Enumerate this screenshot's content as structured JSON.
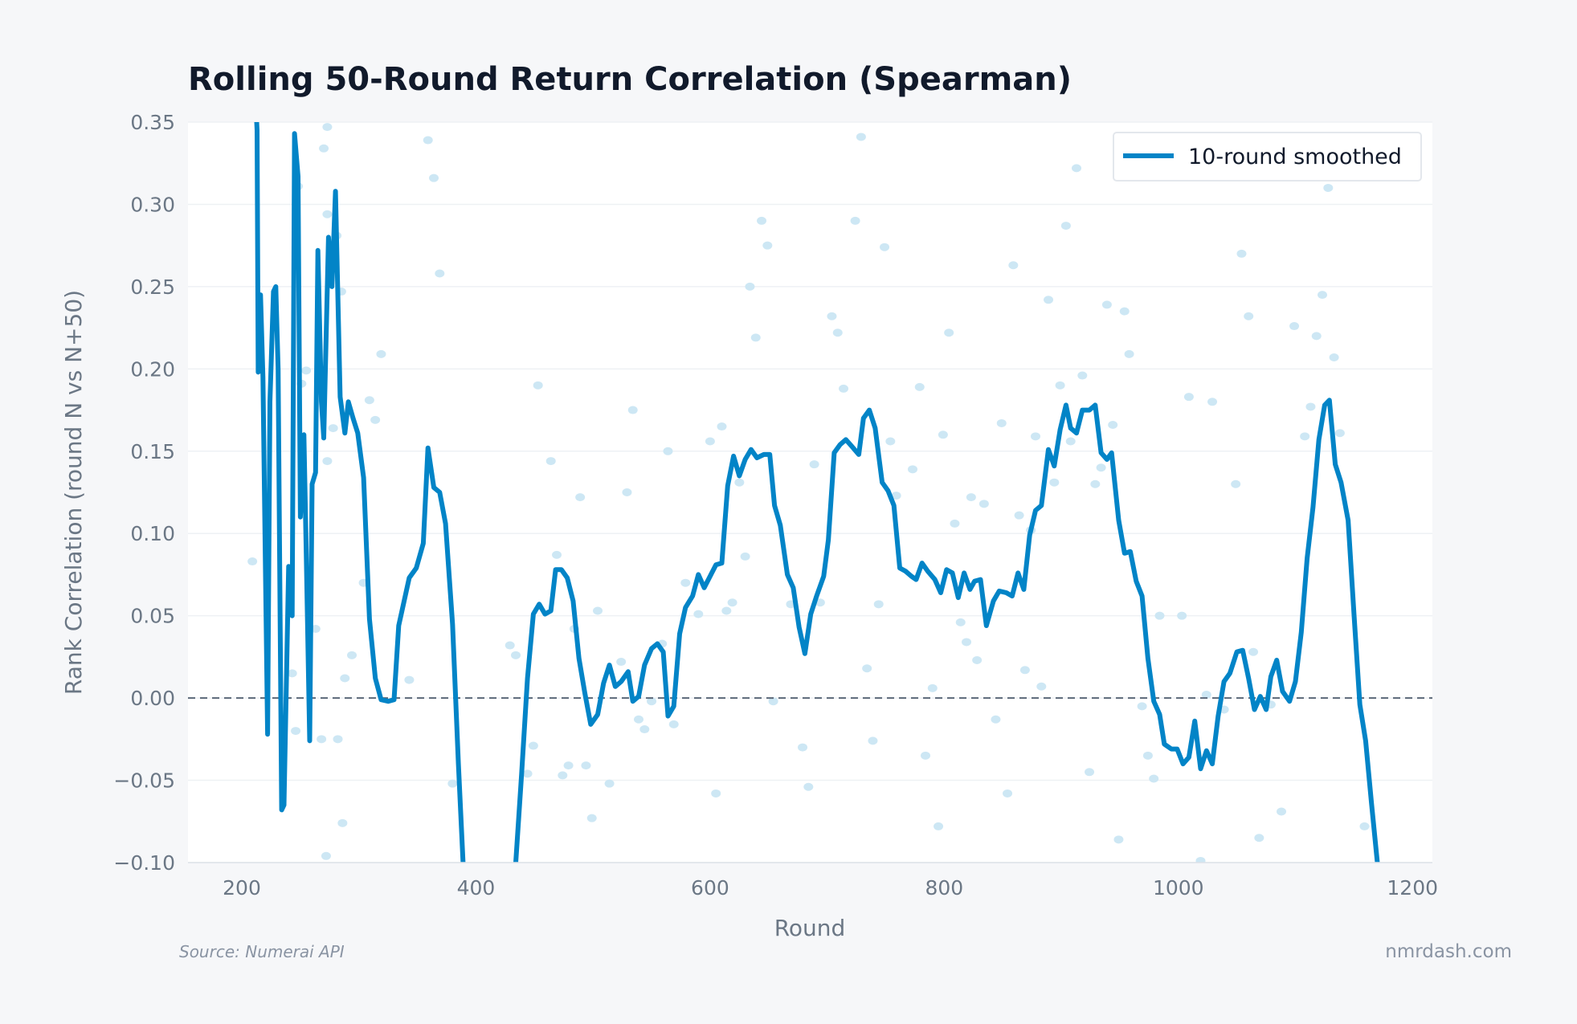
{
  "chart_data": {
    "type": "line",
    "title": "Rolling 50-Round Return Correlation (Spearman)",
    "xlabel": "Round",
    "ylabel": "Rank Correlation (round N vs N+50)",
    "xlim": [
      154,
      1217
    ],
    "ylim": [
      -0.1,
      0.35
    ],
    "xticks": [
      200,
      400,
      600,
      800,
      1000,
      1200
    ],
    "xtick_labels": [
      "200",
      "400",
      "600",
      "800",
      "1000",
      "1200"
    ],
    "yticks": [
      -0.1,
      -0.05,
      0.0,
      0.05,
      0.1,
      0.15,
      0.2,
      0.25,
      0.3,
      0.35
    ],
    "ytick_labels": [
      "−0.10",
      "−0.05",
      "0.00",
      "0.05",
      "0.10",
      "0.15",
      "0.20",
      "0.25",
      "0.30",
      "0.35"
    ],
    "grid": "horizontal",
    "reference_line": {
      "y": 0,
      "style": "dashed",
      "color": "#5a6778"
    },
    "legend": {
      "placement": "top-right",
      "entries": [
        "10-round smoothed"
      ]
    },
    "colors": {
      "line": "#0284c7",
      "points": "#cde7f4"
    },
    "series": [
      {
        "name": "10-round smoothed",
        "x": [
          212,
          213,
          214,
          216,
          218,
          222,
          224,
          227,
          229,
          231,
          234,
          236,
          240,
          243,
          245,
          248,
          250,
          253,
          255,
          258,
          260,
          263,
          265,
          268,
          270,
          274,
          277,
          280,
          284,
          288,
          291,
          295,
          299,
          304,
          309,
          314,
          319,
          325,
          330,
          334,
          343,
          349,
          355,
          359,
          364,
          369,
          374,
          380,
          385,
          389,
          395,
          430,
          434,
          439,
          444,
          449,
          454,
          459,
          464,
          468,
          473,
          478,
          483,
          488,
          493,
          498,
          504,
          509,
          514,
          519,
          524,
          530,
          534,
          539,
          544,
          550,
          555,
          560,
          564,
          569,
          574,
          579,
          585,
          590,
          595,
          600,
          605,
          610,
          615,
          620,
          625,
          630,
          635,
          640,
          646,
          651,
          655,
          660,
          666,
          671,
          676,
          681,
          686,
          691,
          697,
          701,
          706,
          711,
          716,
          721,
          727,
          731,
          736,
          741,
          747,
          752,
          757,
          762,
          767,
          772,
          776,
          781,
          786,
          792,
          797,
          802,
          807,
          812,
          817,
          822,
          826,
          831,
          836,
          842,
          847,
          853,
          858,
          863,
          868,
          873,
          878,
          883,
          889,
          894,
          899,
          904,
          908,
          913,
          918,
          924,
          929,
          934,
          939,
          943,
          949,
          954,
          959,
          964,
          969,
          974,
          979,
          984,
          988,
          994,
          999,
          1004,
          1009,
          1014,
          1019,
          1024,
          1029,
          1034,
          1039,
          1044,
          1050,
          1055,
          1060,
          1065,
          1070,
          1075,
          1079,
          1084,
          1089,
          1095,
          1100,
          1105,
          1110,
          1115,
          1120,
          1125,
          1129,
          1134,
          1139,
          1145,
          1150,
          1155,
          1160,
          1165,
          1170,
          1175
        ],
        "y": [
          0.36,
          0.345,
          0.198,
          0.245,
          0.195,
          -0.022,
          0.18,
          0.247,
          0.25,
          0.2,
          -0.068,
          -0.065,
          0.08,
          0.05,
          0.343,
          0.317,
          0.11,
          0.16,
          0.088,
          -0.026,
          0.13,
          0.137,
          0.272,
          0.18,
          0.158,
          0.28,
          0.25,
          0.308,
          0.183,
          0.161,
          0.18,
          0.17,
          0.161,
          0.134,
          0.048,
          0.012,
          -0.001,
          -0.002,
          -0.001,
          0.044,
          0.073,
          0.079,
          0.094,
          0.152,
          0.128,
          0.125,
          0.106,
          0.045,
          -0.04,
          -0.1,
          -0.14,
          -0.14,
          -0.1,
          -0.046,
          0.012,
          0.051,
          0.057,
          0.051,
          0.053,
          0.078,
          0.078,
          0.073,
          0.059,
          0.024,
          0.003,
          -0.016,
          -0.01,
          0.009,
          0.02,
          0.007,
          0.01,
          0.016,
          -0.002,
          0.001,
          0.02,
          0.03,
          0.033,
          0.028,
          -0.011,
          -0.005,
          0.039,
          0.055,
          0.062,
          0.075,
          0.067,
          0.074,
          0.081,
          0.082,
          0.129,
          0.147,
          0.135,
          0.145,
          0.151,
          0.146,
          0.148,
          0.148,
          0.117,
          0.105,
          0.075,
          0.067,
          0.043,
          0.027,
          0.051,
          0.062,
          0.074,
          0.096,
          0.149,
          0.154,
          0.157,
          0.153,
          0.148,
          0.17,
          0.175,
          0.164,
          0.131,
          0.126,
          0.117,
          0.079,
          0.077,
          0.074,
          0.072,
          0.082,
          0.077,
          0.072,
          0.064,
          0.078,
          0.076,
          0.061,
          0.076,
          0.066,
          0.071,
          0.072,
          0.044,
          0.059,
          0.065,
          0.064,
          0.062,
          0.076,
          0.066,
          0.099,
          0.114,
          0.117,
          0.151,
          0.141,
          0.163,
          0.178,
          0.164,
          0.161,
          0.175,
          0.175,
          0.178,
          0.149,
          0.145,
          0.149,
          0.108,
          0.088,
          0.089,
          0.071,
          0.062,
          0.024,
          -0.002,
          -0.01,
          -0.028,
          -0.031,
          -0.031,
          -0.04,
          -0.036,
          -0.014,
          -0.043,
          -0.032,
          -0.04,
          -0.011,
          0.01,
          0.015,
          0.028,
          0.029,
          0.012,
          -0.007,
          0.001,
          -0.007,
          0.013,
          0.023,
          0.004,
          -0.002,
          0.01,
          0.04,
          0.085,
          0.116,
          0.157,
          0.178,
          0.181,
          0.142,
          0.131,
          0.108,
          0.051,
          -0.004,
          -0.026,
          -0.064,
          -0.1,
          -0.14
        ]
      },
      {
        "x": [
          209,
          270,
          273,
          359,
          364,
          369,
          319,
          309,
          314,
          304,
          343,
          294,
          288,
          263,
          243,
          246,
          268,
          282,
          286,
          272,
          380,
          429,
          434,
          449,
          444,
          453,
          464,
          469,
          474,
          479,
          484,
          489,
          494,
          499,
          504,
          514,
          524,
          529,
          534,
          539,
          544,
          550,
          559,
          564,
          569,
          579,
          590,
          600,
          605,
          610,
          614,
          619,
          625,
          630,
          634,
          639,
          644,
          649,
          654,
          669,
          679,
          684,
          689,
          694,
          704,
          709,
          714,
          724,
          729,
          734,
          739,
          744,
          749,
          754,
          759,
          773,
          779,
          784,
          790,
          795,
          799,
          804,
          809,
          814,
          819,
          823,
          828,
          834,
          844,
          849,
          854,
          859,
          864,
          869,
          874,
          878,
          883,
          889,
          894,
          899,
          904,
          908,
          913,
          918,
          924,
          929,
          934,
          939,
          944,
          949,
          954,
          958,
          969,
          974,
          979,
          984,
          1003,
          1009,
          1019,
          1024,
          1029,
          1039,
          1049,
          1054,
          1060,
          1064,
          1069,
          1079,
          1088,
          1099,
          1108,
          1113,
          1118,
          1123,
          1128,
          1133,
          1138,
          1159,
          248,
          251,
          255,
          273,
          281,
          285,
          273,
          278
        ],
        "y": [
          0.083,
          0.334,
          0.347,
          0.339,
          0.316,
          0.258,
          0.209,
          0.181,
          0.169,
          0.07,
          0.011,
          0.026,
          0.012,
          0.042,
          0.015,
          -0.02,
          -0.025,
          -0.025,
          -0.076,
          -0.096,
          -0.052,
          0.032,
          0.026,
          -0.029,
          -0.046,
          0.19,
          0.144,
          0.087,
          -0.047,
          -0.041,
          0.042,
          0.122,
          -0.041,
          -0.073,
          0.053,
          -0.052,
          0.022,
          0.125,
          0.175,
          -0.013,
          -0.019,
          -0.002,
          0.033,
          0.15,
          -0.016,
          0.07,
          0.051,
          0.156,
          -0.058,
          0.165,
          0.053,
          0.058,
          0.131,
          0.086,
          0.25,
          0.219,
          0.29,
          0.275,
          -0.002,
          0.057,
          -0.03,
          -0.054,
          0.142,
          0.058,
          0.232,
          0.222,
          0.188,
          0.29,
          0.341,
          0.018,
          -0.026,
          0.057,
          0.274,
          0.156,
          0.123,
          0.139,
          0.189,
          -0.035,
          0.006,
          -0.078,
          0.16,
          0.222,
          0.106,
          0.046,
          0.034,
          0.122,
          0.023,
          0.118,
          -0.013,
          0.167,
          -0.058,
          0.263,
          0.111,
          0.017,
          0.102,
          0.159,
          0.007,
          0.242,
          0.131,
          0.19,
          0.287,
          0.156,
          0.322,
          0.196,
          -0.045,
          0.13,
          0.14,
          0.239,
          0.166,
          -0.086,
          0.235,
          0.209,
          -0.005,
          -0.035,
          -0.049,
          0.05,
          0.05,
          0.183,
          -0.099,
          0.002,
          0.18,
          -0.007,
          0.13,
          0.27,
          0.232,
          0.028,
          -0.085,
          -0.004,
          -0.069,
          0.226,
          0.159,
          0.177,
          0.22,
          0.245,
          0.31,
          0.207,
          0.161,
          -0.078,
          0.311,
          0.191,
          0.199,
          0.294,
          0.281,
          0.247,
          0.144,
          0.164
        ]
      }
    ]
  },
  "footer": {
    "source": "Source: Numerai API",
    "brand": "nmrdash.com"
  }
}
